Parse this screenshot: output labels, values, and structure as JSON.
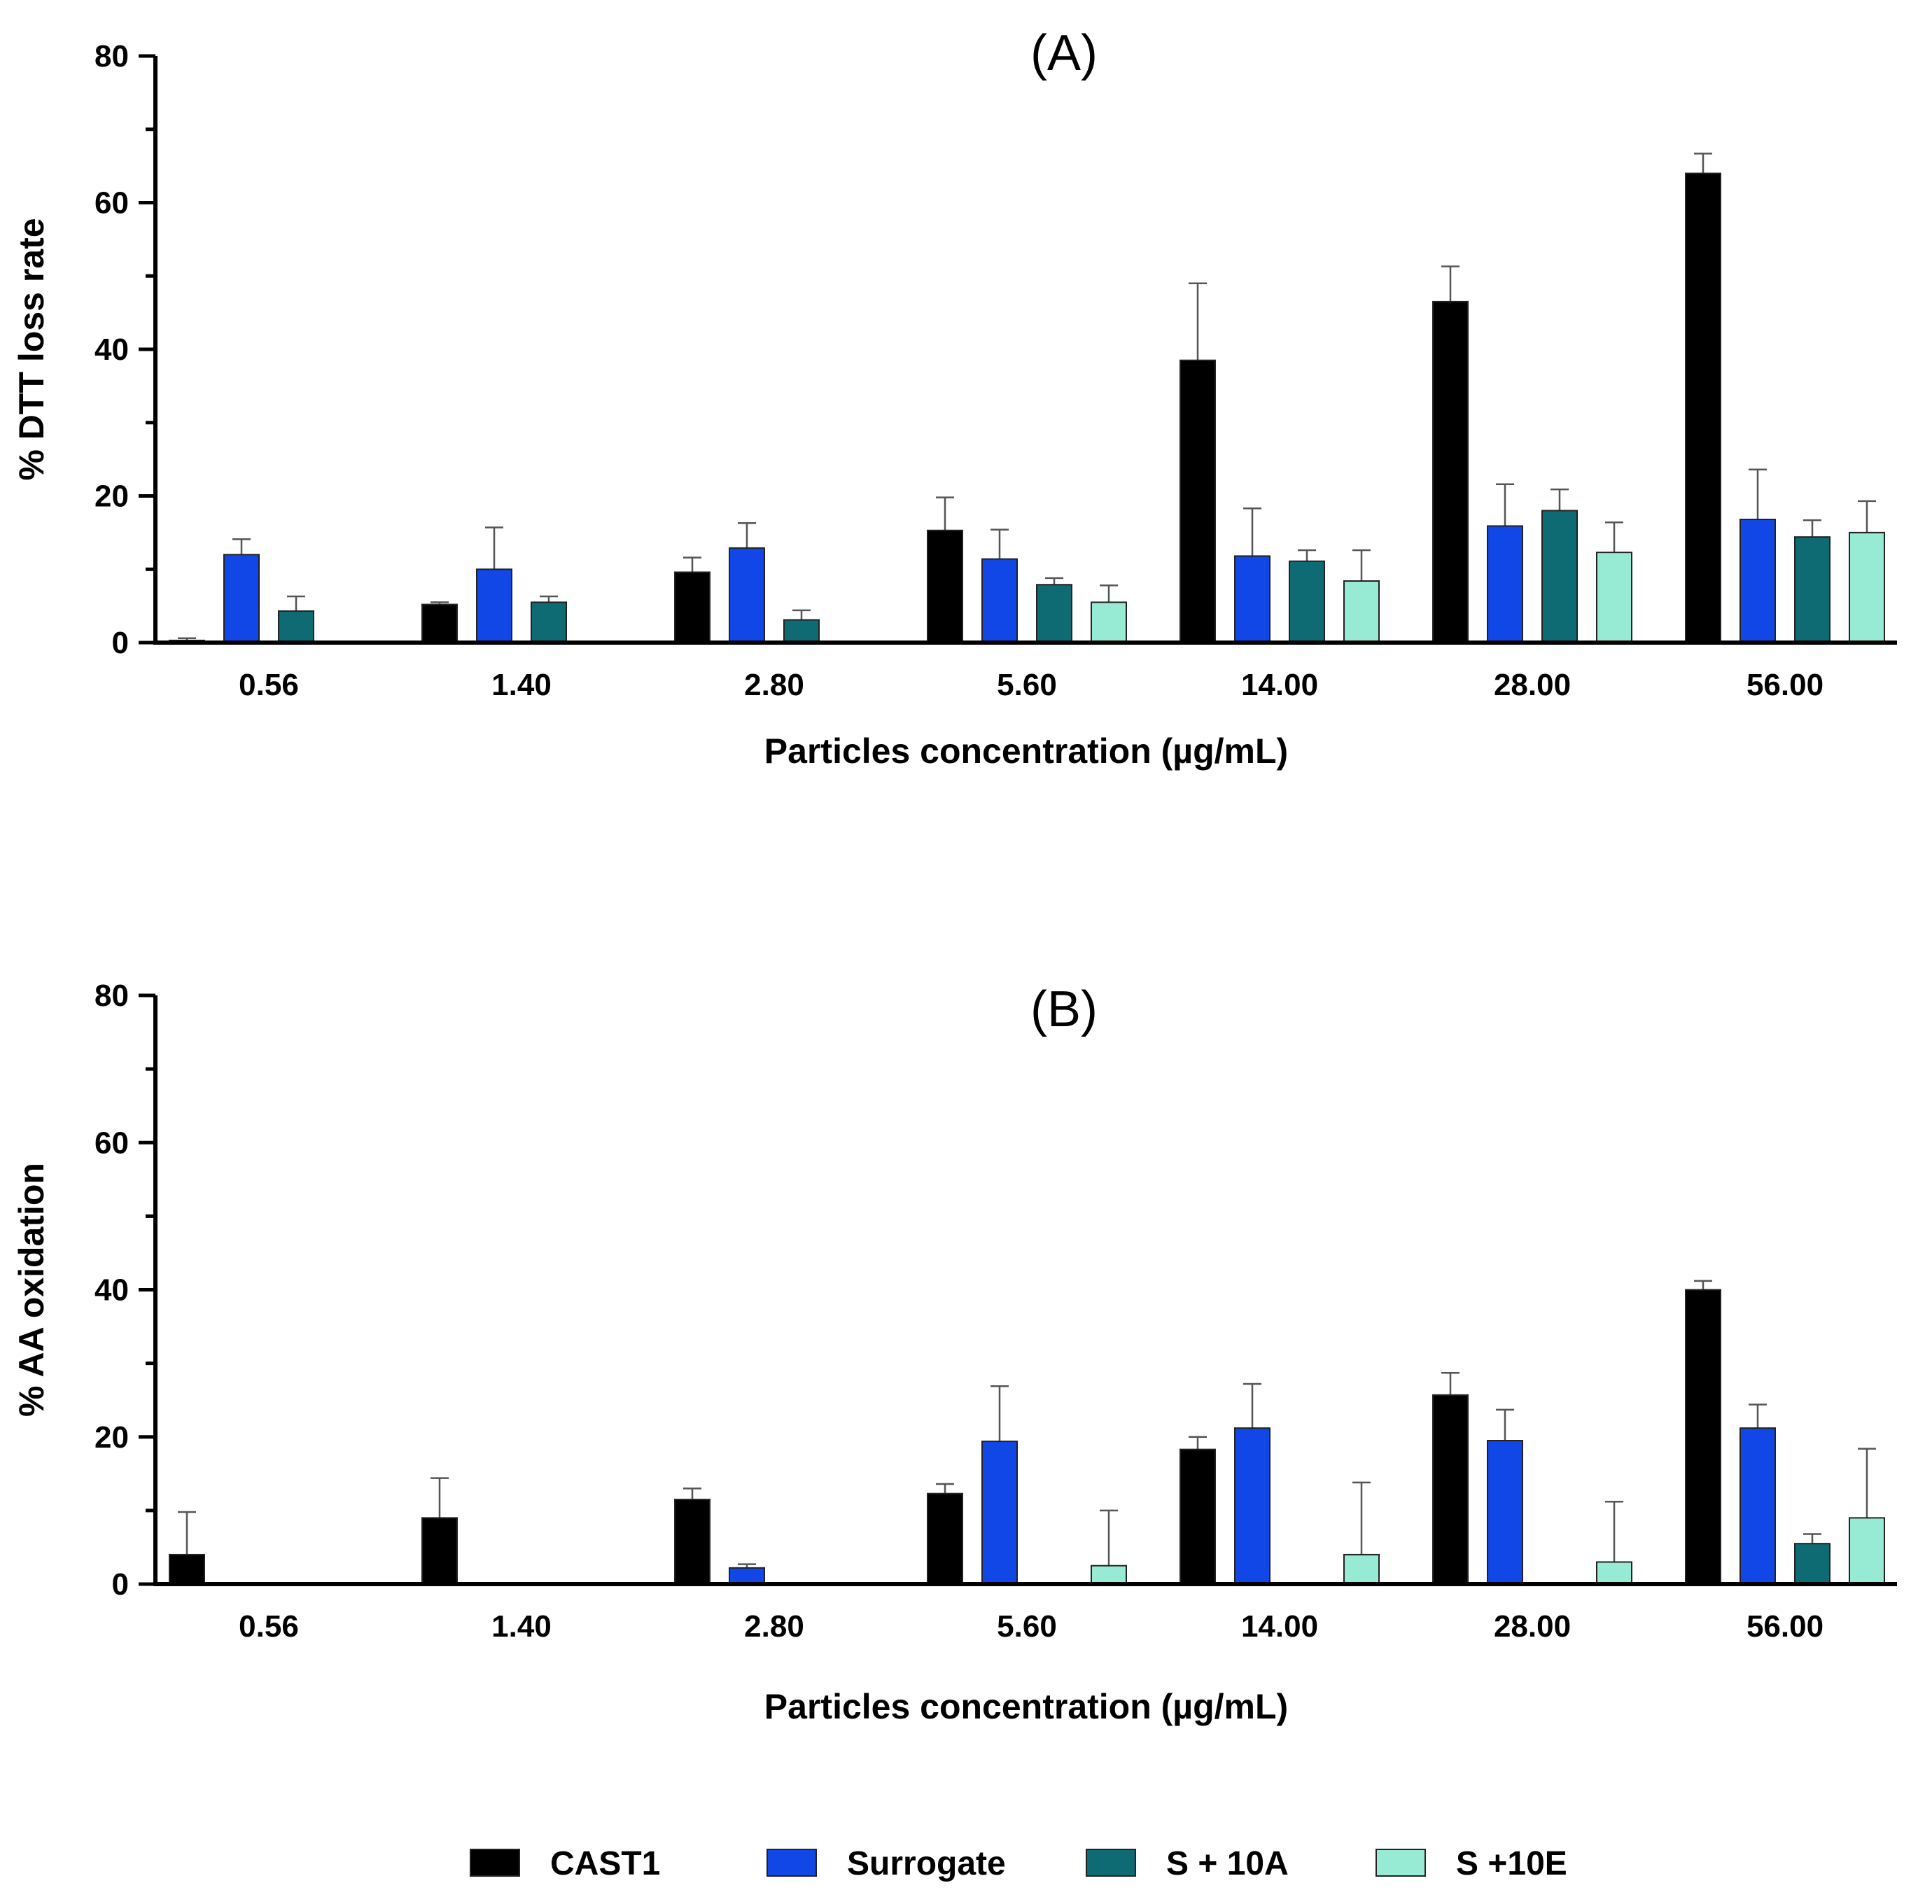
{
  "series_colors": {
    "CAST1": "#000000",
    "Surrogate": "#1147e6",
    "S + 10A": "#0e6b74",
    "S +10E": "#97ebd4"
  },
  "legend": {
    "items": [
      {
        "label": "CAST1",
        "color": "#000000"
      },
      {
        "label": "Surrogate",
        "color": "#1147e6"
      },
      {
        "label": "S + 10A",
        "color": "#0e6b74"
      },
      {
        "label": "S +10E",
        "color": "#97ebd4"
      }
    ]
  },
  "chart_data": [
    {
      "type": "bar",
      "title": "(A)",
      "xlabel": "Particles concentration (µg/mL)",
      "ylabel": "% DTT loss rate",
      "ylim": [
        0,
        80
      ],
      "yticks": [
        0,
        20,
        40,
        60,
        80
      ],
      "categories": [
        "0.56",
        "1.40",
        "2.80",
        "5.60",
        "14.00",
        "28.00",
        "56.00"
      ],
      "series": [
        {
          "name": "CAST1",
          "values": [
            0.3,
            5.2,
            9.6,
            15.3,
            38.5,
            46.5,
            64.0
          ],
          "errors": [
            0.3,
            0.3,
            2.0,
            4.5,
            10.5,
            4.8,
            2.7
          ]
        },
        {
          "name": "Surrogate",
          "values": [
            12.0,
            10.0,
            12.9,
            11.4,
            11.8,
            15.9,
            16.8
          ],
          "errors": [
            2.1,
            5.7,
            3.4,
            4.0,
            6.5,
            5.7,
            6.8
          ]
        },
        {
          "name": "S + 10A",
          "values": [
            4.3,
            5.5,
            3.1,
            7.9,
            11.1,
            18.0,
            14.4
          ],
          "errors": [
            2.0,
            0.8,
            1.3,
            0.9,
            1.5,
            2.9,
            2.3
          ]
        },
        {
          "name": "S +10E",
          "values": [
            0,
            0,
            0,
            5.5,
            8.4,
            12.3,
            15.0
          ],
          "errors": [
            0,
            0,
            0,
            2.3,
            4.2,
            4.1,
            4.3
          ]
        }
      ]
    },
    {
      "type": "bar",
      "title": "(B)",
      "xlabel": "Particles concentration (µg/mL)",
      "ylabel": "% AA oxidation",
      "ylim": [
        0,
        80
      ],
      "yticks": [
        0,
        20,
        40,
        60,
        80
      ],
      "categories": [
        "0.56",
        "1.40",
        "2.80",
        "5.60",
        "14.00",
        "28.00",
        "56.00"
      ],
      "series": [
        {
          "name": "CAST1",
          "values": [
            4.0,
            9.0,
            11.5,
            12.3,
            18.3,
            25.7,
            40.0
          ],
          "errors": [
            5.8,
            5.4,
            1.5,
            1.3,
            1.7,
            3.0,
            1.2
          ]
        },
        {
          "name": "Surrogate",
          "values": [
            0,
            0,
            2.2,
            19.4,
            21.2,
            19.5,
            21.2
          ],
          "errors": [
            0,
            0,
            0.5,
            7.5,
            6.0,
            4.2,
            3.2
          ]
        },
        {
          "name": "S + 10A",
          "values": [
            0,
            0,
            0,
            0,
            0,
            0,
            5.5
          ],
          "errors": [
            0,
            0,
            0,
            0,
            0,
            0,
            1.3
          ]
        },
        {
          "name": "S +10E",
          "values": [
            0,
            0,
            0,
            2.5,
            4.0,
            3.0,
            9.0
          ],
          "errors": [
            0,
            0,
            0,
            7.5,
            9.8,
            8.2,
            9.4
          ]
        }
      ]
    }
  ]
}
